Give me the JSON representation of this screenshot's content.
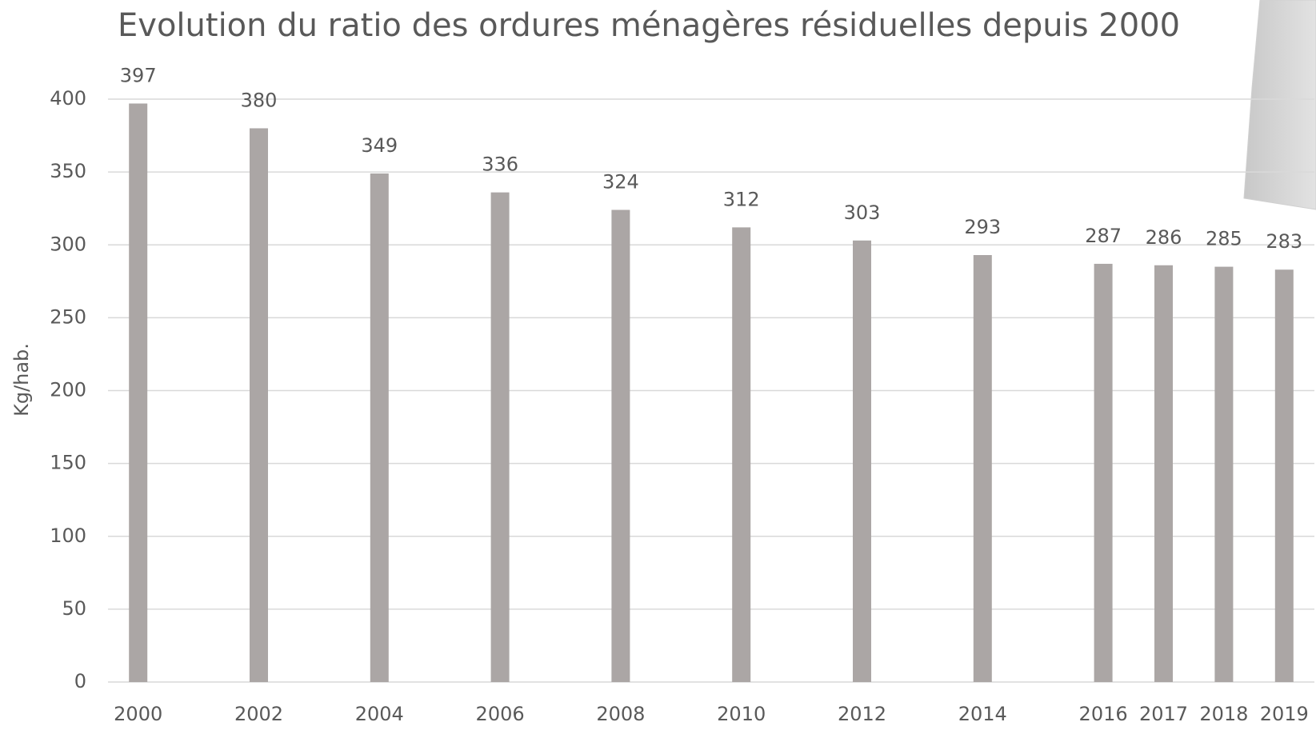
{
  "chart_data": {
    "type": "bar",
    "title": "Evolution du ratio des ordures ménagères résiduelles depuis 2000",
    "y_label": "Kg/hab.",
    "x": [
      2000,
      2002,
      2004,
      2006,
      2008,
      2010,
      2012,
      2014,
      2016,
      2017,
      2018,
      2019
    ],
    "values": [
      397,
      380,
      349,
      336,
      324,
      312,
      303,
      293,
      287,
      286,
      285,
      283
    ],
    "color": "#aba6a5",
    "xlim": [
      1999.5,
      2019.5
    ],
    "ylim": [
      0,
      400
    ],
    "yticks": [
      0,
      50,
      100,
      150,
      200,
      250,
      300,
      350,
      400
    ],
    "grid": true
  }
}
